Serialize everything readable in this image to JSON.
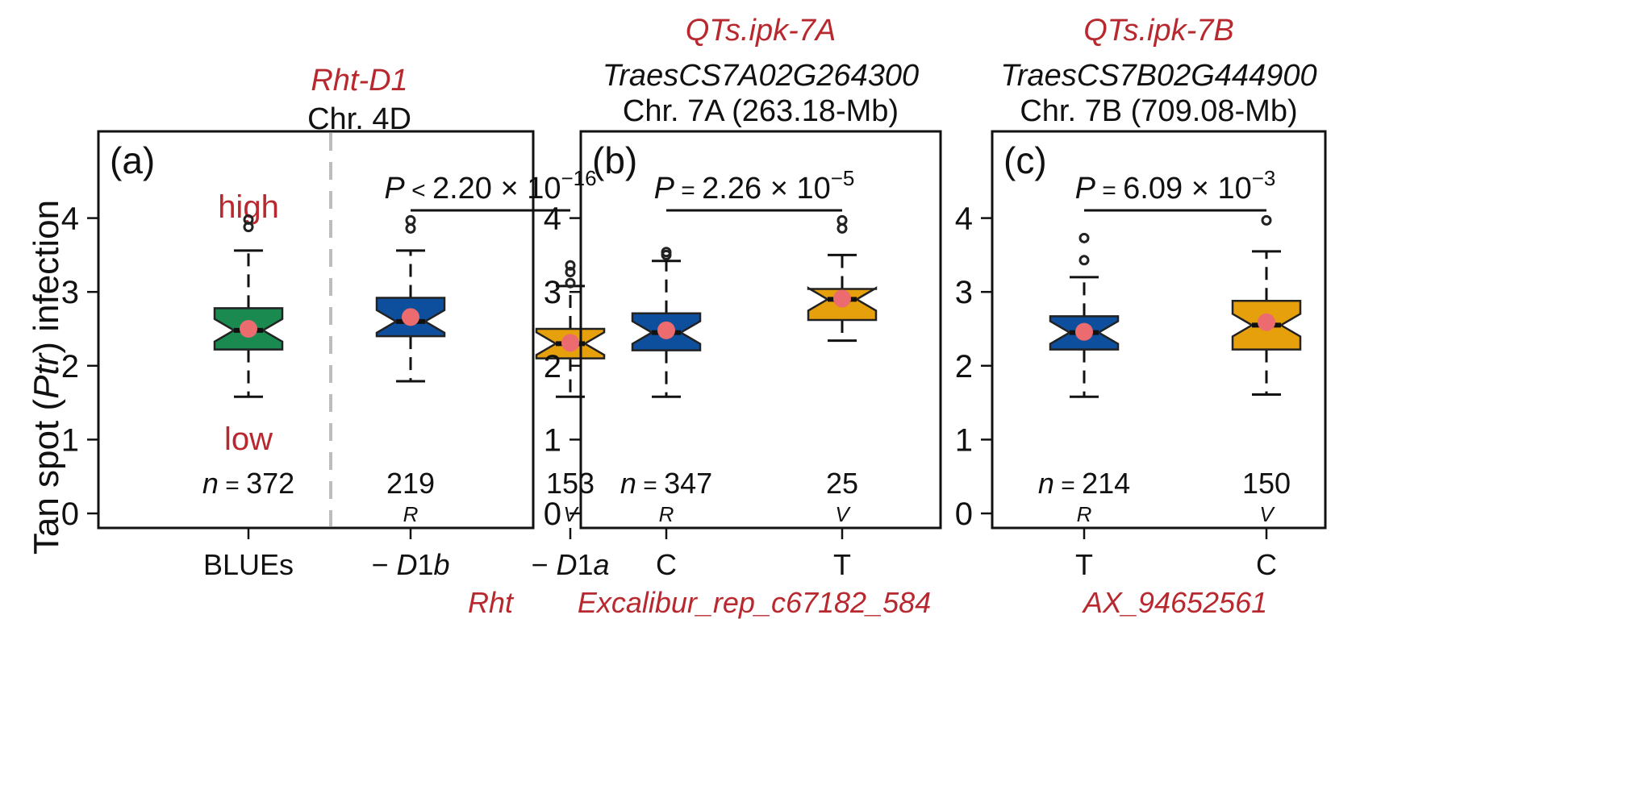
{
  "chart_data": {
    "type": "boxplot",
    "ylabel_pre": "Tan spot ",
    "ylabel_italic": "Ptr",
    "ylabel_post": " infection",
    "ylim": [
      0,
      5
    ],
    "yticks": [
      0,
      1,
      2,
      3,
      4
    ],
    "colors": {
      "green": "#1a8a50",
      "blue": "#0d4f9c",
      "orange": "#e6a00c",
      "mean": "#ec6b6e",
      "red_text": "#b8292f",
      "dashed": "#bdbdbd"
    },
    "panels": [
      {
        "tag": "(a)",
        "qtl": "",
        "gene": "Rht-D1",
        "chr": "Chr. 4D",
        "high": "high",
        "low": "low",
        "p_pre": "P",
        "p_op": "<",
        "p_mant": "2.20",
        "p_times": "×",
        "p_base": "10",
        "p_exp": "−16",
        "n_prefix": "n",
        "n_eq": "=",
        "marker": "Rht",
        "groups": [
          {
            "name": "BLUEs",
            "n": "372",
            "allele": "",
            "color": "green",
            "min": 1.58,
            "q1": 2.22,
            "median": 2.48,
            "q3": 2.78,
            "max": 3.56,
            "mean": 2.5,
            "outliers": [
              3.88,
              3.98
            ]
          },
          {
            "name": "−D1b",
            "n": "219",
            "allele": "R",
            "color": "blue",
            "min": 1.79,
            "q1": 2.4,
            "median": 2.6,
            "q3": 2.92,
            "max": 3.56,
            "mean": 2.66,
            "outliers": [
              3.86,
              3.97
            ]
          },
          {
            "name": "−D1a",
            "n": "153",
            "allele": "V",
            "color": "orange",
            "min": 1.58,
            "q1": 2.1,
            "median": 2.3,
            "q3": 2.5,
            "max": 3.08,
            "mean": 2.31,
            "outliers": [
              3.12,
              3.27,
              3.36
            ]
          }
        ]
      },
      {
        "tag": "(b)",
        "qtl": "QTs.ipk-7A",
        "gene": "TraesCS7A02G264300",
        "chr": "Chr. 7A (263.18-Mb)",
        "p_pre": "P",
        "p_op": "=",
        "p_mant": "2.26",
        "p_times": "×",
        "p_base": "10",
        "p_exp": "−5",
        "n_prefix": "n",
        "n_eq": "=",
        "marker": "Excalibur_rep_c67182_584",
        "groups": [
          {
            "name": "C",
            "n": "347",
            "allele": "R",
            "color": "blue",
            "min": 1.58,
            "q1": 2.21,
            "median": 2.45,
            "q3": 2.71,
            "max": 3.42,
            "mean": 2.48,
            "outliers": [
              3.5,
              3.54
            ]
          },
          {
            "name": "T",
            "n": "25",
            "allele": "V",
            "color": "orange",
            "min": 2.34,
            "q1": 2.62,
            "median": 2.9,
            "q3": 3.04,
            "max": 3.5,
            "mean": 2.91,
            "outliers": [
              3.86,
              3.97
            ]
          }
        ]
      },
      {
        "tag": "(c)",
        "qtl": "QTs.ipk-7B",
        "gene": "TraesCS7B02G444900",
        "chr": "Chr. 7B (709.08-Mb)",
        "p_pre": "P",
        "p_op": "=",
        "p_mant": "6.09",
        "p_times": "×",
        "p_base": "10",
        "p_exp": "−3",
        "n_prefix": "n",
        "n_eq": "=",
        "marker": "AX_94652561",
        "groups": [
          {
            "name": "T",
            "n": "214",
            "allele": "R",
            "color": "blue",
            "min": 1.58,
            "q1": 2.22,
            "median": 2.45,
            "q3": 2.67,
            "max": 3.2,
            "mean": 2.46,
            "outliers": [
              3.43,
              3.73
            ]
          },
          {
            "name": "C",
            "n": "150",
            "allele": "V",
            "color": "orange",
            "min": 1.61,
            "q1": 2.22,
            "median": 2.55,
            "q3": 2.88,
            "max": 3.55,
            "mean": 2.59,
            "outliers": [
              3.97
            ]
          }
        ]
      }
    ]
  }
}
